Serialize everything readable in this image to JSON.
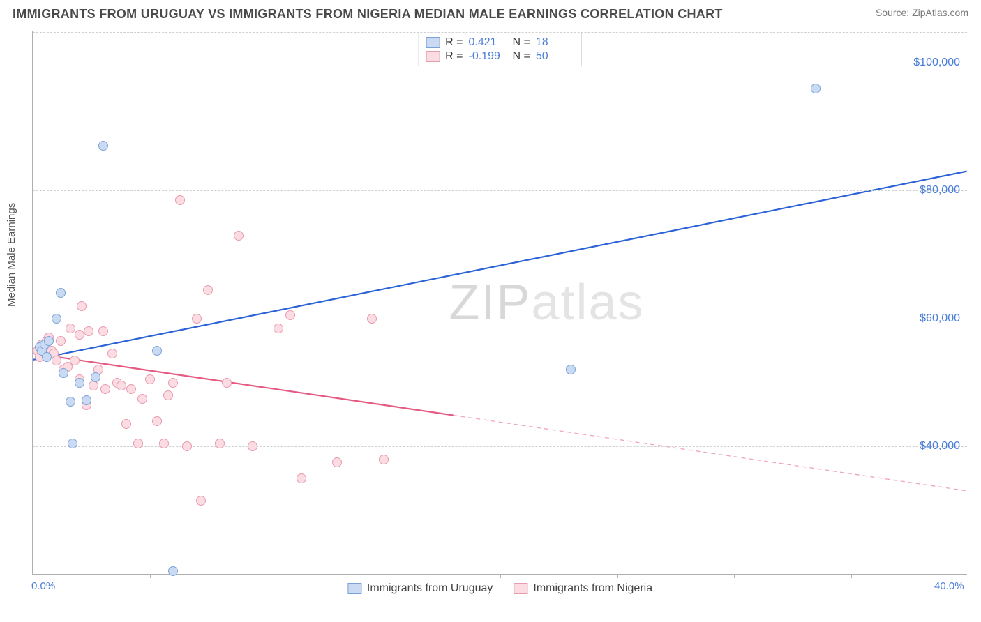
{
  "header": {
    "title": "IMMIGRANTS FROM URUGUAY VS IMMIGRANTS FROM NIGERIA MEDIAN MALE EARNINGS CORRELATION CHART",
    "source": "Source: ZipAtlas.com"
  },
  "chart": {
    "type": "scatter",
    "ylabel": "Median Male Earnings",
    "xlim": [
      0,
      40
    ],
    "ylim": [
      20000,
      105000
    ],
    "background_color": "#ffffff",
    "grid_color": "#d0d0d0",
    "grid_style": "dashed",
    "axis_color": "#b0b0b0",
    "y_ticks": [
      {
        "v": 40000,
        "label": "$40,000"
      },
      {
        "v": 60000,
        "label": "$60,000"
      },
      {
        "v": 80000,
        "label": "$80,000"
      },
      {
        "v": 100000,
        "label": "$100,000"
      }
    ],
    "x_ticks": [
      {
        "v": 0,
        "label": "0.0%"
      },
      {
        "v": 40,
        "label": "40.0%"
      }
    ],
    "x_tick_marks": [
      0,
      5,
      10,
      15,
      17.5,
      20,
      25,
      30,
      35,
      40
    ],
    "watermark": {
      "zip": "ZIP",
      "atlas": "atlas"
    },
    "marker_radius": 7,
    "marker_stroke_width": 1.2,
    "series": [
      {
        "key": "uruguay",
        "label": "Immigrants from Uruguay",
        "fill": "#c9daf2",
        "stroke": "#7ba2d8",
        "line_color": "#2b62d6",
        "r_value": "0.421",
        "n_value": "18",
        "trend": {
          "x1": 0,
          "y1": 53500,
          "x2": 40,
          "y2": 83000,
          "solid_until": 40
        },
        "points": [
          {
            "x": 0.3,
            "y": 55500
          },
          {
            "x": 0.4,
            "y": 55000
          },
          {
            "x": 0.5,
            "y": 56000
          },
          {
            "x": 0.6,
            "y": 54000
          },
          {
            "x": 0.7,
            "y": 56500
          },
          {
            "x": 1.0,
            "y": 60000
          },
          {
            "x": 1.2,
            "y": 64000
          },
          {
            "x": 1.3,
            "y": 51500
          },
          {
            "x": 1.6,
            "y": 47000
          },
          {
            "x": 1.7,
            "y": 40500
          },
          {
            "x": 2.0,
            "y": 50000
          },
          {
            "x": 2.3,
            "y": 47200
          },
          {
            "x": 2.7,
            "y": 50800
          },
          {
            "x": 3.0,
            "y": 87000
          },
          {
            "x": 5.3,
            "y": 55000
          },
          {
            "x": 6.0,
            "y": 20500
          },
          {
            "x": 23.0,
            "y": 52000
          },
          {
            "x": 33.5,
            "y": 96000
          }
        ]
      },
      {
        "key": "nigeria",
        "label": "Immigrants from Nigeria",
        "fill": "#fbdce3",
        "stroke": "#e89aaf",
        "line_color": "#e45a82",
        "r_value": "-0.199",
        "n_value": "50",
        "trend": {
          "x1": 0,
          "y1": 54500,
          "x2": 40,
          "y2": 33000,
          "solid_until": 18
        },
        "points": [
          {
            "x": 0.2,
            "y": 55000
          },
          {
            "x": 0.3,
            "y": 54000
          },
          {
            "x": 0.4,
            "y": 56000
          },
          {
            "x": 0.5,
            "y": 55500
          },
          {
            "x": 0.6,
            "y": 56500
          },
          {
            "x": 0.7,
            "y": 57000
          },
          {
            "x": 0.8,
            "y": 55000
          },
          {
            "x": 0.9,
            "y": 54500
          },
          {
            "x": 1.0,
            "y": 53500
          },
          {
            "x": 1.2,
            "y": 56500
          },
          {
            "x": 1.3,
            "y": 52000
          },
          {
            "x": 1.5,
            "y": 52500
          },
          {
            "x": 1.6,
            "y": 58500
          },
          {
            "x": 1.8,
            "y": 53500
          },
          {
            "x": 2.0,
            "y": 57500
          },
          {
            "x": 2.0,
            "y": 50500
          },
          {
            "x": 2.1,
            "y": 62000
          },
          {
            "x": 2.3,
            "y": 46500
          },
          {
            "x": 2.4,
            "y": 58000
          },
          {
            "x": 2.6,
            "y": 49500
          },
          {
            "x": 2.8,
            "y": 52000
          },
          {
            "x": 3.0,
            "y": 58000
          },
          {
            "x": 3.1,
            "y": 49000
          },
          {
            "x": 3.4,
            "y": 54500
          },
          {
            "x": 3.6,
            "y": 50000
          },
          {
            "x": 3.8,
            "y": 49500
          },
          {
            "x": 4.0,
            "y": 43500
          },
          {
            "x": 4.2,
            "y": 49000
          },
          {
            "x": 4.5,
            "y": 40500
          },
          {
            "x": 4.7,
            "y": 47500
          },
          {
            "x": 5.0,
            "y": 50500
          },
          {
            "x": 5.3,
            "y": 44000
          },
          {
            "x": 5.6,
            "y": 40500
          },
          {
            "x": 5.8,
            "y": 48000
          },
          {
            "x": 6.0,
            "y": 50000
          },
          {
            "x": 6.3,
            "y": 78500
          },
          {
            "x": 6.6,
            "y": 40000
          },
          {
            "x": 7.0,
            "y": 60000
          },
          {
            "x": 7.2,
            "y": 31500
          },
          {
            "x": 7.5,
            "y": 64500
          },
          {
            "x": 8.0,
            "y": 40500
          },
          {
            "x": 8.3,
            "y": 50000
          },
          {
            "x": 8.8,
            "y": 73000
          },
          {
            "x": 9.4,
            "y": 40000
          },
          {
            "x": 10.5,
            "y": 58500
          },
          {
            "x": 11.0,
            "y": 60500
          },
          {
            "x": 11.5,
            "y": 35000
          },
          {
            "x": 13.0,
            "y": 37500
          },
          {
            "x": 14.5,
            "y": 60000
          },
          {
            "x": 15.0,
            "y": 38000
          }
        ]
      }
    ]
  },
  "labels": {
    "r_prefix": "R =",
    "n_prefix": "N ="
  }
}
